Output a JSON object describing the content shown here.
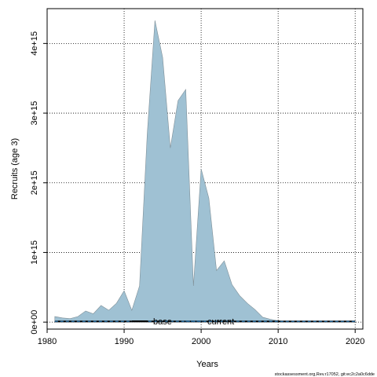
{
  "chart_data": {
    "type": "area",
    "title": "",
    "xlabel": "Years",
    "ylabel": "Recruits (age 3)",
    "xlim": [
      1980,
      2021
    ],
    "ylim": [
      -100000000000000.0,
      4500000000000000.0
    ],
    "x_ticks": [
      1980,
      1990,
      2000,
      2010,
      2020
    ],
    "x_tick_labels": [
      "1980",
      "1990",
      "2000",
      "2010",
      "2020"
    ],
    "y_ticks": [
      0,
      1000000000000000.0,
      2000000000000000.0,
      3000000000000000.0,
      4000000000000000.0
    ],
    "y_tick_labels": [
      "0e+00",
      "1e+15",
      "2e+15",
      "3e+15",
      "4e+15"
    ],
    "grid": true,
    "legend_position": "bottom-center",
    "series": [
      {
        "name": "base",
        "color": "#000000",
        "fill": "#9fc1d3",
        "style": "solid",
        "x": [
          1981,
          1982,
          1983,
          1984,
          1985,
          1986,
          1987,
          1988,
          1989,
          1990,
          1991,
          1992,
          1993,
          1994,
          1995,
          1996,
          1997,
          1998,
          1999,
          2000,
          2001,
          2002,
          2003,
          2004,
          2005,
          2006,
          2007,
          2008,
          2009,
          2010,
          2011,
          2012,
          2013,
          2014,
          2015,
          2016,
          2017,
          2018,
          2019,
          2020
        ],
        "values": [
          80000000000000.0,
          60000000000000.0,
          50000000000000.0,
          80000000000000.0,
          160000000000000.0,
          120000000000000.0,
          240000000000000.0,
          170000000000000.0,
          270000000000000.0,
          450000000000000.0,
          170000000000000.0,
          520000000000000.0,
          2700000000000000.0,
          4330000000000000.0,
          3800000000000000.0,
          2500000000000000.0,
          3180000000000000.0,
          3340000000000000.0,
          520000000000000.0,
          2200000000000000.0,
          1780000000000000.0,
          740000000000000.0,
          880000000000000.0,
          540000000000000.0,
          380000000000000.0,
          270000000000000.0,
          180000000000000.0,
          70000000000000.0,
          40000000000000.0,
          20000000000000.0,
          10000000000000.0,
          10000000000000.0,
          10000000000000.0,
          10000000000000.0,
          10000000000000.0,
          10000000000000.0,
          10000000000000.0,
          10000000000000.0,
          10000000000000.0,
          10000000000000.0
        ]
      },
      {
        "name": "current",
        "color": "#1f5f8f",
        "style": "dashed",
        "x": [
          1981,
          2020
        ],
        "values": [
          10000000000000.0,
          10000000000000.0
        ]
      }
    ]
  },
  "footer": {
    "source": "stockassessment.org,Rev.r17052, git:ec2c2a0c6dde"
  }
}
